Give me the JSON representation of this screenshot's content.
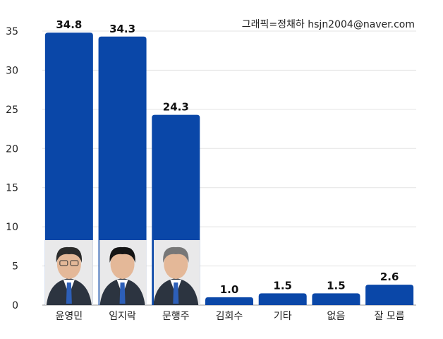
{
  "credit": "그래픽=정채하 hsjn2004@naver.com",
  "chart_data": {
    "type": "bar",
    "categories": [
      "윤영민",
      "임지락",
      "문행주",
      "김회수",
      "기타",
      "없음",
      "잘 모름"
    ],
    "values": [
      34.8,
      34.3,
      24.3,
      1.0,
      1.5,
      1.5,
      2.6
    ],
    "value_labels": [
      "34.8",
      "34.3",
      "24.3",
      "1.0",
      "1.5",
      "1.5",
      "2.6"
    ],
    "yticks": [
      "0",
      "5",
      "10",
      "15",
      "20",
      "25",
      "30",
      "35"
    ],
    "ylim": [
      0,
      35
    ],
    "grid": true,
    "bar_color": "#0a47a8",
    "photos_on_bars": [
      "윤영민",
      "임지락",
      "문행주"
    ]
  }
}
